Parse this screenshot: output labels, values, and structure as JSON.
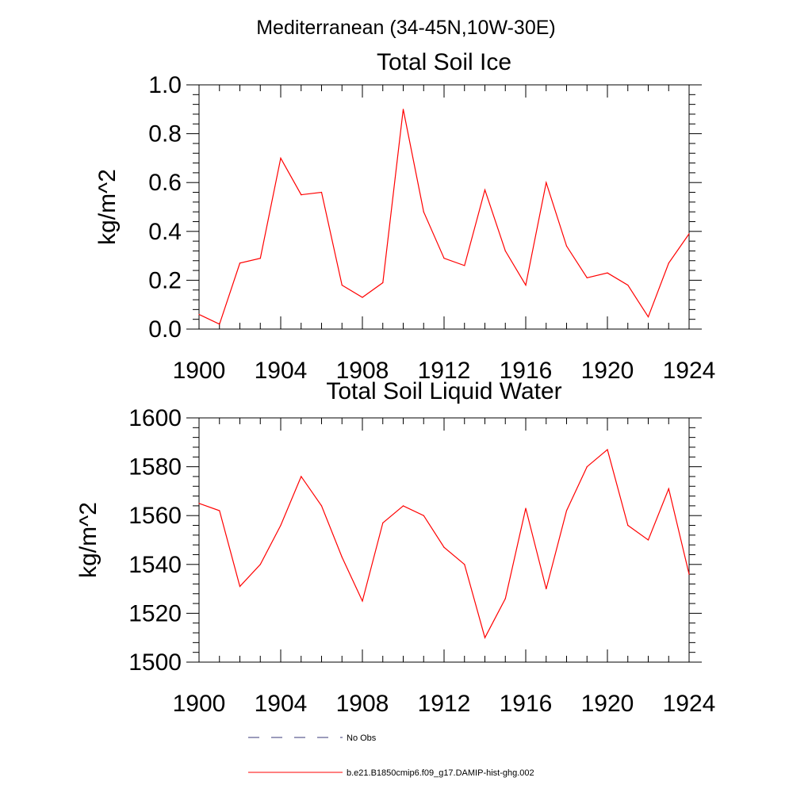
{
  "suptitle": "Mediterranean (34-45N,10W-30E)",
  "colors": {
    "model": "#ff0000",
    "obs": "#3a3a7a",
    "axis": "#000000"
  },
  "chart_data": [
    {
      "type": "line",
      "title": "Total Soil Ice",
      "xlabel": "",
      "ylabel": "kg/m^2",
      "xlim": [
        1900,
        1924
      ],
      "ylim": [
        0,
        1.0
      ],
      "xticks": [
        1900,
        1904,
        1908,
        1912,
        1916,
        1920,
        1924
      ],
      "xtick_labels": [
        "1900",
        "1904",
        "1908",
        "1912",
        "1916",
        "1920",
        "1924"
      ],
      "yticks": [
        0,
        0.2,
        0.4,
        0.6,
        0.8,
        1.0
      ],
      "ytick_labels": [
        "0.0",
        "0.2",
        "0.4",
        "0.6",
        "0.8",
        "1.0"
      ],
      "series": [
        {
          "name": "b.e21.B1850cmip6.f09_g17.DAMIP-hist-ghg.002",
          "x": [
            1900,
            1901,
            1902,
            1903,
            1904,
            1905,
            1906,
            1907,
            1908,
            1909,
            1910,
            1911,
            1912,
            1913,
            1914,
            1915,
            1916,
            1917,
            1918,
            1919,
            1920,
            1921,
            1922,
            1923,
            1924
          ],
          "values": [
            0.06,
            0.02,
            0.27,
            0.29,
            0.7,
            0.55,
            0.56,
            0.18,
            0.13,
            0.19,
            0.9,
            0.48,
            0.29,
            0.26,
            0.57,
            0.32,
            0.18,
            0.6,
            0.34,
            0.21,
            0.23,
            0.18,
            0.05,
            0.27,
            0.39
          ]
        }
      ]
    },
    {
      "type": "line",
      "title": "Total Soil Liquid Water",
      "xlabel": "",
      "ylabel": "kg/m^2",
      "xlim": [
        1900,
        1924
      ],
      "ylim": [
        1500,
        1600
      ],
      "xticks": [
        1900,
        1904,
        1908,
        1912,
        1916,
        1920,
        1924
      ],
      "xtick_labels": [
        "1900",
        "1904",
        "1908",
        "1912",
        "1916",
        "1920",
        "1924"
      ],
      "yticks": [
        1500,
        1520,
        1540,
        1560,
        1580,
        1600
      ],
      "ytick_labels": [
        "1500",
        "1520",
        "1540",
        "1560",
        "1580",
        "1600"
      ],
      "series": [
        {
          "name": "b.e21.B1850cmip6.f09_g17.DAMIP-hist-ghg.002",
          "x": [
            1900,
            1901,
            1902,
            1903,
            1904,
            1905,
            1906,
            1907,
            1908,
            1909,
            1910,
            1911,
            1912,
            1913,
            1914,
            1915,
            1916,
            1917,
            1918,
            1919,
            1920,
            1921,
            1922,
            1923,
            1924
          ],
          "values": [
            1565,
            1562,
            1531,
            1540,
            1556,
            1576,
            1564,
            1543,
            1525,
            1557,
            1564,
            1560,
            1547,
            1540,
            1510,
            1526,
            1563,
            1530,
            1562,
            1580,
            1587,
            1556,
            1550,
            1571,
            1536
          ]
        }
      ]
    }
  ],
  "legend": {
    "placement": "bottom-center",
    "items": [
      {
        "label": "No Obs",
        "style": "dashed",
        "color_key": "obs"
      },
      {
        "label": "b.e21.B1850cmip6.f09_g17.DAMIP-hist-ghg.002",
        "style": "solid",
        "color_key": "model"
      }
    ]
  }
}
